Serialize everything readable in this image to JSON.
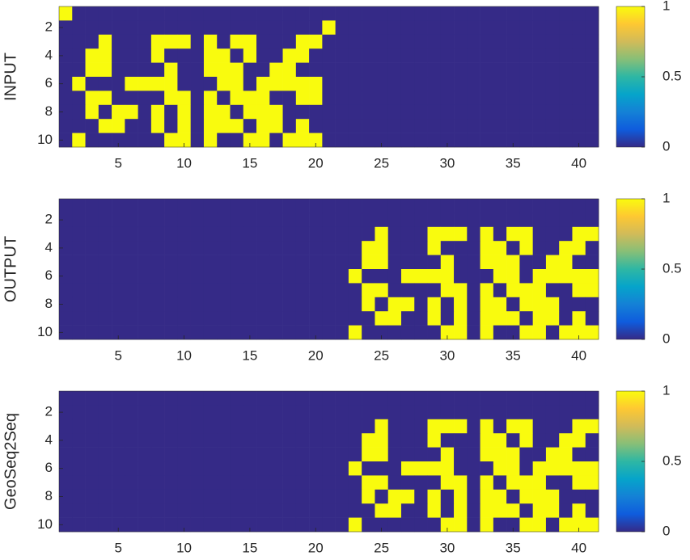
{
  "chart_data": [
    {
      "type": "heatmap",
      "ylabel": "INPUT",
      "xlim": [
        0.5,
        41.5
      ],
      "ylim": [
        0.5,
        10.5
      ],
      "xticks": [
        5,
        10,
        15,
        20,
        25,
        30,
        35,
        40
      ],
      "yticks": [
        2,
        4,
        6,
        8,
        10
      ],
      "clim": [
        0,
        1
      ],
      "cticks": [
        0,
        0.5,
        1
      ],
      "colormap": [
        "#352a87",
        "#0f5cdd",
        "#1481d6",
        "#06a4ca",
        "#2eb7a4",
        "#87bf77",
        "#d1bb59",
        "#fec832",
        "#f9fb0e"
      ],
      "z": [
        [
          1,
          0,
          0,
          0,
          0,
          0,
          0,
          0,
          0,
          0,
          0,
          0,
          0,
          0,
          0,
          0,
          0,
          0,
          0,
          0,
          0,
          0,
          0,
          0,
          0,
          0,
          0,
          0,
          0,
          0,
          0,
          0,
          0,
          0,
          0,
          0,
          0,
          0,
          0,
          0,
          0
        ],
        [
          0,
          0,
          0,
          0,
          0,
          0,
          0,
          0,
          0,
          0,
          0,
          0,
          0,
          0,
          0,
          0,
          0,
          0,
          0,
          0,
          1,
          0,
          0,
          0,
          0,
          0,
          0,
          0,
          0,
          0,
          0,
          0,
          0,
          0,
          0,
          0,
          0,
          0,
          0,
          0,
          0
        ],
        [
          0,
          0,
          0,
          1,
          0,
          0,
          0,
          1,
          1,
          1,
          0,
          1,
          0,
          1,
          1,
          0,
          0,
          0,
          1,
          1,
          0,
          0,
          0,
          0,
          0,
          0,
          0,
          0,
          0,
          0,
          0,
          0,
          0,
          0,
          0,
          0,
          0,
          0,
          0,
          0,
          0
        ],
        [
          0,
          0,
          1,
          1,
          0,
          0,
          0,
          1,
          0,
          0,
          0,
          1,
          1,
          0,
          1,
          0,
          0,
          1,
          1,
          0,
          0,
          0,
          0,
          0,
          0,
          0,
          0,
          0,
          0,
          0,
          0,
          0,
          0,
          0,
          0,
          0,
          0,
          0,
          0,
          0,
          0
        ],
        [
          0,
          0,
          1,
          1,
          0,
          0,
          0,
          0,
          1,
          0,
          0,
          1,
          1,
          1,
          0,
          0,
          1,
          1,
          0,
          0,
          0,
          0,
          0,
          0,
          0,
          0,
          0,
          0,
          0,
          0,
          0,
          0,
          0,
          0,
          0,
          0,
          0,
          0,
          0,
          0,
          0
        ],
        [
          0,
          1,
          0,
          0,
          0,
          1,
          1,
          1,
          1,
          0,
          0,
          0,
          1,
          1,
          0,
          1,
          1,
          1,
          1,
          1,
          0,
          0,
          0,
          0,
          0,
          0,
          0,
          0,
          0,
          0,
          0,
          0,
          0,
          0,
          0,
          0,
          0,
          0,
          0,
          0,
          0
        ],
        [
          0,
          0,
          1,
          1,
          0,
          0,
          0,
          0,
          1,
          1,
          0,
          1,
          0,
          1,
          1,
          1,
          0,
          0,
          1,
          1,
          0,
          0,
          0,
          0,
          0,
          0,
          0,
          0,
          0,
          0,
          0,
          0,
          0,
          0,
          0,
          0,
          0,
          0,
          0,
          0,
          0
        ],
        [
          0,
          0,
          1,
          0,
          1,
          1,
          0,
          1,
          0,
          1,
          0,
          1,
          1,
          0,
          1,
          1,
          1,
          0,
          0,
          0,
          0,
          0,
          0,
          0,
          0,
          0,
          0,
          0,
          0,
          0,
          0,
          0,
          0,
          0,
          0,
          0,
          0,
          0,
          0,
          0,
          0
        ],
        [
          0,
          0,
          0,
          1,
          1,
          0,
          0,
          1,
          0,
          1,
          0,
          1,
          1,
          1,
          0,
          1,
          1,
          0,
          1,
          0,
          0,
          0,
          0,
          0,
          0,
          0,
          0,
          0,
          0,
          0,
          0,
          0,
          0,
          0,
          0,
          0,
          0,
          0,
          0,
          0,
          0
        ],
        [
          0,
          1,
          0,
          0,
          0,
          0,
          0,
          0,
          1,
          1,
          0,
          1,
          0,
          0,
          1,
          1,
          0,
          1,
          1,
          1,
          0,
          0,
          0,
          0,
          0,
          0,
          0,
          0,
          0,
          0,
          0,
          0,
          0,
          0,
          0,
          0,
          0,
          0,
          0,
          0,
          0
        ]
      ]
    },
    {
      "type": "heatmap",
      "ylabel": "OUTPUT",
      "xlim": [
        0.5,
        41.5
      ],
      "ylim": [
        0.5,
        10.5
      ],
      "xticks": [
        5,
        10,
        15,
        20,
        25,
        30,
        35,
        40
      ],
      "yticks": [
        2,
        4,
        6,
        8,
        10
      ],
      "clim": [
        0,
        1
      ],
      "cticks": [
        0,
        0.5,
        1
      ],
      "colormap": [
        "#352a87",
        "#0f5cdd",
        "#1481d6",
        "#06a4ca",
        "#2eb7a4",
        "#87bf77",
        "#d1bb59",
        "#fec832",
        "#f9fb0e"
      ],
      "z": [
        [
          0,
          0,
          0,
          0,
          0,
          0,
          0,
          0,
          0,
          0,
          0,
          0,
          0,
          0,
          0,
          0,
          0,
          0,
          0,
          0,
          0,
          0,
          0,
          0,
          0,
          0,
          0,
          0,
          0,
          0,
          0,
          0,
          0,
          0,
          0,
          0,
          0,
          0,
          0,
          0,
          0
        ],
        [
          0,
          0,
          0,
          0,
          0,
          0,
          0,
          0,
          0,
          0,
          0,
          0,
          0,
          0,
          0,
          0,
          0,
          0,
          0,
          0,
          0,
          0,
          0,
          0,
          0,
          0,
          0,
          0,
          0,
          0,
          0,
          0,
          0,
          0,
          0,
          0,
          0,
          0,
          0,
          0,
          0
        ],
        [
          0,
          0,
          0,
          0,
          0,
          0,
          0,
          0,
          0,
          0,
          0,
          0,
          0,
          0,
          0,
          0,
          0,
          0,
          0,
          0,
          0,
          0,
          0,
          0,
          1,
          0,
          0,
          0,
          1,
          1,
          1,
          0,
          1,
          0,
          1,
          1,
          0,
          0,
          0,
          1,
          1
        ],
        [
          0,
          0,
          0,
          0,
          0,
          0,
          0,
          0,
          0,
          0,
          0,
          0,
          0,
          0,
          0,
          0,
          0,
          0,
          0,
          0,
          0,
          0,
          0,
          1,
          1,
          0,
          0,
          0,
          1,
          0,
          0,
          0,
          1,
          1,
          0,
          1,
          0,
          0,
          1,
          1,
          0
        ],
        [
          0,
          0,
          0,
          0,
          0,
          0,
          0,
          0,
          0,
          0,
          0,
          0,
          0,
          0,
          0,
          0,
          0,
          0,
          0,
          0,
          0,
          0,
          0,
          1,
          1,
          0,
          0,
          0,
          0,
          1,
          0,
          0,
          1,
          1,
          1,
          0,
          0,
          1,
          1,
          0,
          0
        ],
        [
          0,
          0,
          0,
          0,
          0,
          0,
          0,
          0,
          0,
          0,
          0,
          0,
          0,
          0,
          0,
          0,
          0,
          0,
          0,
          0,
          0,
          0,
          1,
          0,
          0,
          0,
          1,
          1,
          1,
          1,
          0,
          0,
          0,
          1,
          1,
          0,
          1,
          1,
          1,
          1,
          1
        ],
        [
          0,
          0,
          0,
          0,
          0,
          0,
          0,
          0,
          0,
          0,
          0,
          0,
          0,
          0,
          0,
          0,
          0,
          0,
          0,
          0,
          0,
          0,
          0,
          1,
          1,
          0,
          0,
          0,
          0,
          1,
          1,
          0,
          1,
          0,
          1,
          1,
          1,
          0,
          0,
          1,
          1
        ],
        [
          0,
          0,
          0,
          0,
          0,
          0,
          0,
          0,
          0,
          0,
          0,
          0,
          0,
          0,
          0,
          0,
          0,
          0,
          0,
          0,
          0,
          0,
          0,
          1,
          0,
          1,
          1,
          0,
          1,
          0,
          1,
          0,
          1,
          1,
          0,
          1,
          1,
          1,
          0,
          0,
          0
        ],
        [
          0,
          0,
          0,
          0,
          0,
          0,
          0,
          0,
          0,
          0,
          0,
          0,
          0,
          0,
          0,
          0,
          0,
          0,
          0,
          0,
          0,
          0,
          0,
          0,
          1,
          1,
          0,
          0,
          1,
          0,
          1,
          0,
          1,
          1,
          1,
          0,
          1,
          1,
          0,
          1,
          0
        ],
        [
          0,
          0,
          0,
          0,
          0,
          0,
          0,
          0,
          0,
          0,
          0,
          0,
          0,
          0,
          0,
          0,
          0,
          0,
          0,
          0,
          0,
          0,
          1,
          0,
          0,
          0,
          0,
          0,
          0,
          1,
          1,
          0,
          1,
          0,
          0,
          1,
          1,
          0,
          1,
          1,
          1
        ]
      ]
    },
    {
      "type": "heatmap",
      "ylabel": "GeoSeq2Seq",
      "xlim": [
        0.5,
        41.5
      ],
      "ylim": [
        0.5,
        10.5
      ],
      "xticks": [
        5,
        10,
        15,
        20,
        25,
        30,
        35,
        40
      ],
      "yticks": [
        2,
        4,
        6,
        8,
        10
      ],
      "clim": [
        0,
        1
      ],
      "cticks": [
        0,
        0.5,
        1
      ],
      "colormap": [
        "#352a87",
        "#0f5cdd",
        "#1481d6",
        "#06a4ca",
        "#2eb7a4",
        "#87bf77",
        "#d1bb59",
        "#fec832",
        "#f9fb0e"
      ],
      "z": [
        [
          0,
          0,
          0,
          0,
          0,
          0,
          0,
          0,
          0,
          0,
          0,
          0,
          0,
          0,
          0,
          0,
          0,
          0,
          0,
          0,
          0,
          0,
          0,
          0,
          0,
          0,
          0,
          0,
          0,
          0,
          0,
          0,
          0,
          0,
          0,
          0,
          0,
          0,
          0,
          0,
          0
        ],
        [
          0,
          0,
          0,
          0,
          0,
          0,
          0,
          0,
          0,
          0,
          0,
          0,
          0,
          0,
          0,
          0,
          0,
          0,
          0,
          0,
          0,
          0,
          0,
          0,
          0,
          0,
          0,
          0,
          0,
          0,
          0,
          0,
          0,
          0,
          0,
          0,
          0,
          0,
          0,
          0,
          0
        ],
        [
          0,
          0,
          0,
          0,
          0,
          0,
          0,
          0,
          0,
          0,
          0,
          0,
          0,
          0,
          0,
          0,
          0,
          0,
          0,
          0,
          0,
          0,
          0,
          0,
          1,
          0,
          0,
          0,
          1,
          1,
          1,
          0,
          1,
          0,
          1,
          1,
          0,
          0,
          0,
          1,
          1
        ],
        [
          0,
          0,
          0,
          0,
          0,
          0,
          0,
          0,
          0,
          0,
          0,
          0,
          0,
          0,
          0,
          0,
          0,
          0,
          0,
          0,
          0,
          0,
          0,
          1,
          1,
          0,
          0,
          0,
          1,
          0,
          0,
          0,
          1,
          1,
          0,
          1,
          0,
          0,
          1,
          1,
          0
        ],
        [
          0,
          0,
          0,
          0,
          0,
          0,
          0,
          0,
          0,
          0,
          0,
          0,
          0,
          0,
          0,
          0,
          0,
          0,
          0,
          0,
          0,
          0,
          0,
          1,
          1,
          0,
          0,
          0,
          0,
          1,
          0,
          0,
          1,
          1,
          1,
          0,
          0,
          1,
          1,
          0,
          0
        ],
        [
          0,
          0,
          0,
          0,
          0,
          0,
          0,
          0,
          0,
          0,
          0,
          0,
          0,
          0,
          0,
          0,
          0,
          0,
          0,
          0,
          0,
          0,
          1,
          0,
          0,
          0,
          1,
          1,
          1,
          1,
          0,
          0,
          0,
          1,
          1,
          0,
          1,
          1,
          1,
          1,
          1
        ],
        [
          0,
          0,
          0,
          0,
          0,
          0,
          0,
          0,
          0,
          0,
          0,
          0,
          0,
          0,
          0,
          0,
          0,
          0,
          0,
          0,
          0,
          0,
          0,
          1,
          1,
          0,
          0,
          0,
          0,
          1,
          1,
          0,
          1,
          0,
          1,
          1,
          1,
          0,
          0,
          1,
          1
        ],
        [
          0,
          0,
          0,
          0,
          0,
          0,
          0,
          0,
          0,
          0,
          0,
          0,
          0,
          0,
          0,
          0,
          0,
          0,
          0,
          0,
          0,
          0,
          0,
          1,
          0,
          1,
          1,
          0,
          1,
          0,
          1,
          0,
          1,
          1,
          0,
          1,
          1,
          1,
          0,
          0,
          0
        ],
        [
          0,
          0,
          0,
          0,
          0,
          0,
          0,
          0,
          0,
          0,
          0,
          0,
          0,
          0,
          0,
          0,
          0,
          0,
          0,
          0,
          0,
          0,
          0,
          0,
          1,
          1,
          0,
          0,
          1,
          0,
          1,
          0,
          1,
          1,
          1,
          0,
          1,
          1,
          0,
          1,
          0
        ],
        [
          0,
          0,
          0,
          0,
          0,
          0,
          0,
          0,
          0,
          0,
          0,
          0,
          0,
          0,
          0,
          0,
          0,
          0,
          0,
          0,
          0,
          0,
          1,
          0,
          0,
          0,
          0,
          0,
          0,
          1,
          1,
          0,
          1,
          0,
          0,
          1,
          1,
          0,
          1,
          1,
          1
        ]
      ]
    }
  ]
}
